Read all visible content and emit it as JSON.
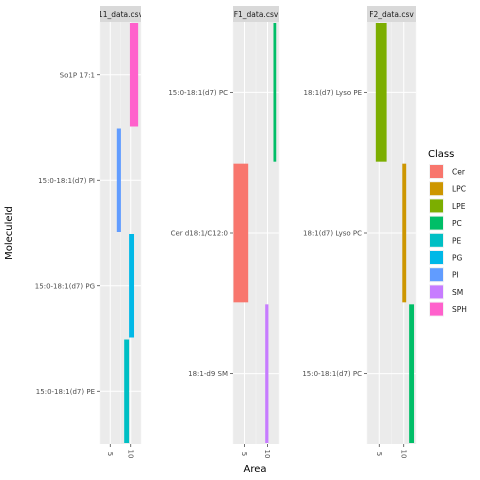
{
  "chart_data": {
    "type": "bar",
    "orientation": "horizontal",
    "xlabel": "Area",
    "ylabel": "MoleculeId",
    "legend": {
      "title": "Class",
      "placement": "right",
      "entries": [
        {
          "label": "Cer",
          "color": "#F8766D"
        },
        {
          "label": "LPC",
          "color": "#CD9600"
        },
        {
          "label": "LPE",
          "color": "#7CAE00"
        },
        {
          "label": "PC",
          "color": "#00BE67"
        },
        {
          "label": "PE",
          "color": "#00BFC4"
        },
        {
          "label": "PG",
          "color": "#00B8E7"
        },
        {
          "label": "PI",
          "color": "#619CFF"
        },
        {
          "label": "SM",
          "color": "#C77CFF"
        },
        {
          "label": "SPH",
          "color": "#FF61CC"
        }
      ]
    },
    "grid": true,
    "panels": [
      {
        "strip": "11_data.csv",
        "xlim": [
          2.5,
          12.5
        ],
        "xticks": [
          5,
          10
        ],
        "categories": [
          "So1P 17:1",
          "15:0-18:1(d7) PI",
          "15:0-18:1(d7) PG",
          "15:0-18:1(d7) PE"
        ],
        "bars": [
          {
            "category": "So1P 17:1",
            "class": "SPH",
            "min": 9.8,
            "max": 11.8
          },
          {
            "category": "15:0-18:1(d7) PI",
            "class": "PI",
            "min": 6.6,
            "max": 7.6
          },
          {
            "category": "15:0-18:1(d7) PG",
            "class": "PG",
            "min": 9.6,
            "max": 10.8
          },
          {
            "category": "15:0-18:1(d7) PE",
            "class": "PE",
            "min": 8.4,
            "max": 9.6
          }
        ]
      },
      {
        "strip": "F1_data.csv",
        "xlim": [
          2.5,
          12.5
        ],
        "xticks": [
          5,
          10
        ],
        "categories": [
          "15:0-18:1(d7) PC",
          "Cer d18:1/C12:0",
          "18:1-d9 SM"
        ],
        "bars": [
          {
            "category": "15:0-18:1(d7) PC",
            "class": "PC",
            "min": 11.3,
            "max": 11.9
          },
          {
            "category": "Cer d18:1/C12:0",
            "class": "Cer",
            "min": 2.6,
            "max": 5.8
          },
          {
            "category": "18:1-d9 SM",
            "class": "SM",
            "min": 9.5,
            "max": 10.2
          }
        ]
      },
      {
        "strip": "F2_data.csv",
        "xlim": [
          2.5,
          12.5
        ],
        "xticks": [
          5,
          10
        ],
        "categories": [
          "18:1(d7) Lyso PE",
          "18:1(d7) Lyso PC",
          "15:0-18:1(d7) PC"
        ],
        "bars": [
          {
            "category": "18:1(d7) Lyso PE",
            "class": "LPE",
            "min": 4.3,
            "max": 6.5
          },
          {
            "category": "18:1(d7) Lyso PC",
            "class": "LPC",
            "min": 9.7,
            "max": 10.5
          },
          {
            "category": "15:0-18:1(d7) PC",
            "class": "PC",
            "min": 11.1,
            "max": 12.1
          }
        ]
      }
    ]
  }
}
